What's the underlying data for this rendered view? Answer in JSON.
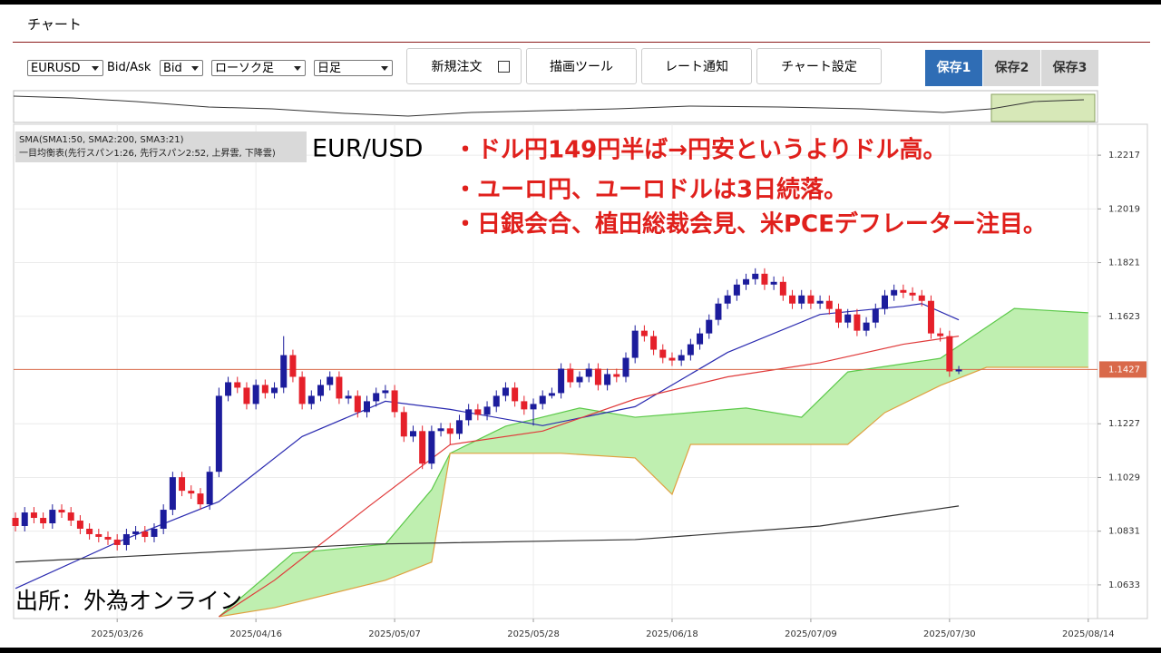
{
  "header": {
    "title": "チャート"
  },
  "controls": {
    "symbol": "EURUSD",
    "bid_ask_label": "Bid/Ask",
    "price_side": "Bid",
    "chart_style": "ローソク足",
    "period": "日足",
    "buttons": [
      "新規注文",
      "描画ツール",
      "レート通知",
      "チャート設定"
    ],
    "saves": [
      "保存1",
      "保存2",
      "保存3"
    ]
  },
  "chart_data": {
    "type": "candlestick",
    "legend": [
      "SMA(SMA1:50, SMA2:200, SMA3:21)",
      "一目均衡表(先行スパン1:26, 先行スパン2:52, 上昇雲, 下降雲)"
    ],
    "symbol_label": "EUR/USD",
    "annotations": [
      "・ドル円149円半ば→円安というよりドル高。",
      "・ユーロ円、ユーロドルは3日続落。",
      "・日銀会合、植田総裁会見、米PCEデフレーター注目。"
    ],
    "source": "出所：外為オンライン",
    "up_color": "#1c1c9c",
    "down_color": "#e5202a",
    "candles": [
      [
        1.088,
        1.09,
        1.083,
        1.085
      ],
      [
        1.085,
        1.092,
        1.083,
        1.09
      ],
      [
        1.09,
        1.092,
        1.086,
        1.088
      ],
      [
        1.088,
        1.09,
        1.084,
        1.086
      ],
      [
        1.086,
        1.093,
        1.084,
        1.091
      ],
      [
        1.091,
        1.093,
        1.088,
        1.09
      ],
      [
        1.09,
        1.092,
        1.085,
        1.087
      ],
      [
        1.087,
        1.089,
        1.082,
        1.084
      ],
      [
        1.084,
        1.086,
        1.08,
        1.082
      ],
      [
        1.082,
        1.084,
        1.079,
        1.081
      ],
      [
        1.081,
        1.083,
        1.078,
        1.08
      ],
      [
        1.08,
        1.082,
        1.076,
        1.078
      ],
      [
        1.078,
        1.084,
        1.076,
        1.082
      ],
      [
        1.082,
        1.085,
        1.08,
        1.083
      ],
      [
        1.083,
        1.085,
        1.079,
        1.081
      ],
      [
        1.081,
        1.086,
        1.079,
        1.084
      ],
      [
        1.084,
        1.093,
        1.082,
        1.091
      ],
      [
        1.091,
        1.105,
        1.089,
        1.103
      ],
      [
        1.103,
        1.105,
        1.096,
        1.098
      ],
      [
        1.098,
        1.1,
        1.095,
        1.097
      ],
      [
        1.097,
        1.099,
        1.091,
        1.093
      ],
      [
        1.093,
        1.107,
        1.091,
        1.105
      ],
      [
        1.105,
        1.136,
        1.103,
        1.133
      ],
      [
        1.133,
        1.14,
        1.131,
        1.138
      ],
      [
        1.138,
        1.14,
        1.134,
        1.136
      ],
      [
        1.136,
        1.138,
        1.128,
        1.13
      ],
      [
        1.13,
        1.139,
        1.128,
        1.137
      ],
      [
        1.137,
        1.139,
        1.132,
        1.134
      ],
      [
        1.134,
        1.138,
        1.132,
        1.136
      ],
      [
        1.136,
        1.155,
        1.134,
        1.148
      ],
      [
        1.148,
        1.15,
        1.138,
        1.14
      ],
      [
        1.14,
        1.142,
        1.128,
        1.13
      ],
      [
        1.13,
        1.135,
        1.128,
        1.133
      ],
      [
        1.133,
        1.139,
        1.131,
        1.137
      ],
      [
        1.137,
        1.142,
        1.135,
        1.14
      ],
      [
        1.14,
        1.142,
        1.13,
        1.132
      ],
      [
        1.132,
        1.135,
        1.13,
        1.133
      ],
      [
        1.133,
        1.135,
        1.125,
        1.127
      ],
      [
        1.127,
        1.133,
        1.125,
        1.131
      ],
      [
        1.131,
        1.136,
        1.129,
        1.134
      ],
      [
        1.134,
        1.137,
        1.132,
        1.135
      ],
      [
        1.135,
        1.137,
        1.125,
        1.127
      ],
      [
        1.127,
        1.129,
        1.116,
        1.118
      ],
      [
        1.118,
        1.122,
        1.116,
        1.12
      ],
      [
        1.12,
        1.122,
        1.106,
        1.108
      ],
      [
        1.108,
        1.122,
        1.106,
        1.12
      ],
      [
        1.12,
        1.123,
        1.118,
        1.121
      ],
      [
        1.121,
        1.123,
        1.115,
        1.119
      ],
      [
        1.119,
        1.126,
        1.117,
        1.124
      ],
      [
        1.124,
        1.13,
        1.122,
        1.128
      ],
      [
        1.128,
        1.13,
        1.124,
        1.126
      ],
      [
        1.126,
        1.131,
        1.124,
        1.129
      ],
      [
        1.129,
        1.135,
        1.127,
        1.133
      ],
      [
        1.133,
        1.138,
        1.131,
        1.136
      ],
      [
        1.136,
        1.138,
        1.129,
        1.131
      ],
      [
        1.131,
        1.133,
        1.126,
        1.128
      ],
      [
        1.128,
        1.132,
        1.122,
        1.13
      ],
      [
        1.13,
        1.135,
        1.128,
        1.133
      ],
      [
        1.133,
        1.136,
        1.132,
        1.134
      ],
      [
        1.134,
        1.145,
        1.132,
        1.143
      ],
      [
        1.143,
        1.145,
        1.136,
        1.138
      ],
      [
        1.138,
        1.142,
        1.136,
        1.14
      ],
      [
        1.14,
        1.145,
        1.138,
        1.143
      ],
      [
        1.143,
        1.145,
        1.135,
        1.137
      ],
      [
        1.137,
        1.143,
        1.135,
        1.141
      ],
      [
        1.141,
        1.143,
        1.138,
        1.14
      ],
      [
        1.14,
        1.149,
        1.138,
        1.147
      ],
      [
        1.147,
        1.159,
        1.145,
        1.157
      ],
      [
        1.157,
        1.159,
        1.153,
        1.155
      ],
      [
        1.155,
        1.157,
        1.148,
        1.15
      ],
      [
        1.15,
        1.152,
        1.145,
        1.147
      ],
      [
        1.147,
        1.149,
        1.144,
        1.146
      ],
      [
        1.146,
        1.15,
        1.144,
        1.148
      ],
      [
        1.148,
        1.154,
        1.146,
        1.152
      ],
      [
        1.152,
        1.158,
        1.15,
        1.156
      ],
      [
        1.156,
        1.163,
        1.154,
        1.161
      ],
      [
        1.161,
        1.169,
        1.159,
        1.167
      ],
      [
        1.167,
        1.172,
        1.165,
        1.17
      ],
      [
        1.17,
        1.176,
        1.168,
        1.174
      ],
      [
        1.174,
        1.178,
        1.172,
        1.176
      ],
      [
        1.176,
        1.18,
        1.174,
        1.178
      ],
      [
        1.178,
        1.18,
        1.172,
        1.174
      ],
      [
        1.174,
        1.177,
        1.172,
        1.175
      ],
      [
        1.175,
        1.177,
        1.168,
        1.17
      ],
      [
        1.17,
        1.172,
        1.165,
        1.167
      ],
      [
        1.167,
        1.172,
        1.165,
        1.17
      ],
      [
        1.17,
        1.172,
        1.165,
        1.167
      ],
      [
        1.167,
        1.17,
        1.165,
        1.168
      ],
      [
        1.168,
        1.17,
        1.163,
        1.165
      ],
      [
        1.165,
        1.167,
        1.158,
        1.16
      ],
      [
        1.16,
        1.165,
        1.158,
        1.163
      ],
      [
        1.163,
        1.165,
        1.155,
        1.157
      ],
      [
        1.157,
        1.162,
        1.155,
        1.16
      ],
      [
        1.16,
        1.167,
        1.158,
        1.165
      ],
      [
        1.165,
        1.172,
        1.163,
        1.17
      ],
      [
        1.17,
        1.174,
        1.168,
        1.172
      ],
      [
        1.172,
        1.174,
        1.169,
        1.171
      ],
      [
        1.171,
        1.173,
        1.168,
        1.17
      ],
      [
        1.17,
        1.172,
        1.166,
        1.168
      ],
      [
        1.168,
        1.17,
        1.154,
        1.156
      ],
      [
        1.156,
        1.158,
        1.153,
        1.155
      ],
      [
        1.155,
        1.157,
        1.14,
        1.142
      ],
      [
        1.142,
        1.144,
        1.141,
        1.1427
      ]
    ],
    "lines": [
      {
        "color": "#2a2ab0",
        "x": [
          0,
          11,
          22,
          31,
          40,
          47,
          57,
          67,
          77,
          87,
          96,
          98,
          102
        ],
        "values": [
          1.062,
          1.079,
          1.094,
          1.118,
          1.131,
          1.128,
          1.122,
          1.129,
          1.149,
          1.163,
          1.166,
          1.167,
          1.161
        ]
      },
      {
        "color": "#e03a3a",
        "x": [
          22,
          28,
          38,
          47,
          57,
          67,
          77,
          87,
          96,
          102
        ],
        "values": [
          1.0516,
          1.065,
          1.0917,
          1.115,
          1.12,
          1.1318,
          1.14,
          1.1452,
          1.152,
          1.155
        ]
      },
      {
        "color": "#333333",
        "x": [
          0,
          38,
          67,
          87,
          102
        ],
        "values": [
          1.0717,
          1.0783,
          1.08,
          1.085,
          1.0924
        ]
      }
    ],
    "cloud": {
      "fill": "#bfefb0",
      "span_a": {
        "color": "#5cc94a",
        "x": [
          22,
          30,
          40,
          45,
          47,
          53,
          61,
          67,
          73,
          79,
          85,
          90,
          100,
          108,
          116
        ],
        "values": [
          1.0516,
          1.075,
          1.0783,
          1.0984,
          1.1118,
          1.1218,
          1.1285,
          1.1251,
          1.1268,
          1.1285,
          1.1251,
          1.1418,
          1.1468,
          1.1652,
          1.1636
        ]
      },
      "span_b": {
        "color": "#e0a040",
        "x": [
          22,
          28,
          40,
          45,
          47,
          59,
          67,
          71,
          73,
          90,
          94,
          100,
          105,
          116
        ],
        "values": [
          1.0516,
          1.0549,
          1.065,
          1.0717,
          1.1118,
          1.1118,
          1.1101,
          1.0967,
          1.1151,
          1.1151,
          1.1268,
          1.1368,
          1.1435,
          1.1435
        ]
      }
    },
    "last_price": 1.1427,
    "last_price_color": "#d9694a",
    "xlim": [
      -0.2,
      117
    ],
    "xticks": [
      {
        "value": 11,
        "label": "2025/03/26"
      },
      {
        "value": 26,
        "label": "2025/04/16"
      },
      {
        "value": 41,
        "label": "2025/05/07"
      },
      {
        "value": 56,
        "label": "2025/05/28"
      },
      {
        "value": 71,
        "label": "2025/06/18"
      },
      {
        "value": 86,
        "label": "2025/07/09"
      },
      {
        "value": 101,
        "label": "2025/07/30"
      },
      {
        "value": 116,
        "label": "2025/08/14"
      }
    ],
    "ylim": [
      1.0509,
      1.2331
    ],
    "yticks": [
      1.2217,
      1.2019,
      1.1821,
      1.1623,
      1.1227,
      1.1029,
      1.0831,
      1.0633
    ],
    "grid": true
  }
}
